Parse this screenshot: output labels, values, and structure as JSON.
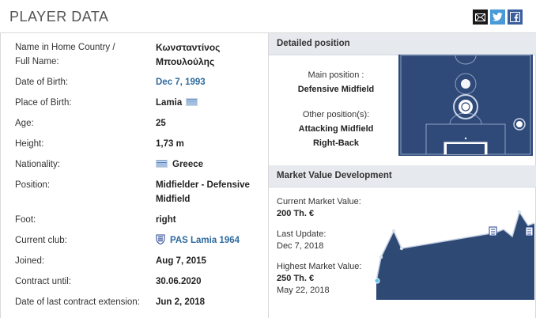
{
  "header": {
    "title": "PLAYER DATA"
  },
  "share": {
    "mail": "mail-icon",
    "twitter": "twitter-icon",
    "facebook": "facebook-icon"
  },
  "player": {
    "name_label_line1": "Name in Home Country /",
    "name_label_line2": "Full Name:",
    "name_line1": "Κωνσταντίνος",
    "name_line2": "Μπουλούλης",
    "dob_label": "Date of Birth:",
    "dob": "Dec 7, 1993",
    "pob_label": "Place of Birth:",
    "pob": "Lamia",
    "age_label": "Age:",
    "age": "25",
    "height_label": "Height:",
    "height": "1,73 m",
    "nationality_label": "Nationality:",
    "nationality": "Greece",
    "position_label": "Position:",
    "position_line1": "Midfielder - Defensive",
    "position_line2": "Midfield",
    "foot_label": "Foot:",
    "foot": "right",
    "club_label": "Current club:",
    "club": "PAS Lamia 1964",
    "joined_label": "Joined:",
    "joined": "Aug 7, 2015",
    "contract_label": "Contract until:",
    "contract": "30.06.2020",
    "extension_label": "Date of last contract extension:",
    "extension": "Jun 2, 2018"
  },
  "position_box": {
    "title": "Detailed position",
    "main_label": "Main position :",
    "main": "Defensive Midfield",
    "other_label": "Other position(s):",
    "other_1": "Attacking Midfield",
    "other_2": "Right-Back"
  },
  "market": {
    "title": "Market Value Development",
    "current_label": "Current Market Value:",
    "current": "200 Th. €",
    "update_label": "Last Update:",
    "update": "Dec 7, 2018",
    "highest_label": "Highest Market Value:",
    "highest": "250 Th. €",
    "highest_date": "May 22, 2018"
  },
  "colors": {
    "accent": "#2e6b9e",
    "chart_fill": "#2e4a74",
    "pitch": "#2f4a78",
    "header_bg": "#e6e9ee"
  }
}
